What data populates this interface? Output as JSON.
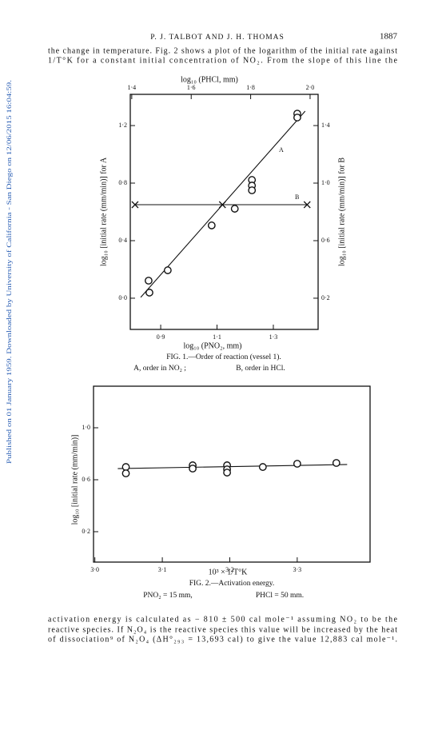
{
  "header": {
    "authors": "P. J. TALBOT AND J. H. THOMAS",
    "page": "1887"
  },
  "side_note": "Published on 01 January 1959. Downloaded by University of California - San Diego on 12/06/2015 16:04:59.",
  "paragraph_top": [
    "the change in temperature.  Fig. 2 shows a plot of the logarithm of the initial rate against",
    "1/T°K for a constant initial concentration of NO₂.  From the slope of this line the"
  ],
  "figures": [
    {
      "type": "scatter",
      "x_label": "log₁₀ (PNO₂, mm)",
      "x2_label": "log₁₀ (PHCl, mm)",
      "y_label": "log₁₀ [initial rate (mm/min)] for A",
      "y2_label": "log₁₀ [initial rate (mm/min)] for B",
      "xlim": [
        0.792,
        1.459
      ],
      "xticks": [
        {
          "value": 0.9,
          "label": "0·9"
        },
        {
          "value": 1.1,
          "label": "1·1"
        },
        {
          "value": 1.3,
          "label": "1·3"
        }
      ],
      "x2lim": [
        1.395,
        2.027
      ],
      "x2ticks": [
        {
          "value": 1.4,
          "label": "1·4"
        },
        {
          "value": 1.6,
          "label": "1·6"
        },
        {
          "value": 1.8,
          "label": "1·8"
        },
        {
          "value": 2.0,
          "label": "2·0"
        }
      ],
      "ylim": [
        -0.217,
        1.417
      ],
      "yticks": [
        {
          "value": 0.0,
          "label": "0·0"
        },
        {
          "value": 0.4,
          "label": "0·4"
        },
        {
          "value": 0.8,
          "label": "0·8"
        },
        {
          "value": 1.2,
          "label": "1·2"
        }
      ],
      "y2lim": [
        -0.017,
        1.617
      ],
      "y2ticks": [
        {
          "value": 0.2,
          "label": "0·2"
        },
        {
          "value": 0.6,
          "label": "0·6"
        },
        {
          "value": 1.0,
          "label": "1·0"
        },
        {
          "value": 1.4,
          "label": "1·4"
        }
      ],
      "series": [
        {
          "name": "A",
          "marker": "circle",
          "color": "#111111",
          "x": [
            0.857,
            0.86,
            0.925,
            1.081,
            1.163,
            1.224,
            1.224,
            1.224,
            1.385,
            1.385
          ],
          "values": [
            0.122,
            0.039,
            0.194,
            0.506,
            0.622,
            0.822,
            0.783,
            0.75,
            1.283,
            1.256
          ],
          "fit": {
            "x": [
              0.829,
              1.413
            ],
            "values": [
              0.006,
              1.3
            ]
          }
        },
        {
          "name": "B",
          "marker": "cross",
          "color": "#111111",
          "axis": "y2",
          "xaxis": "x2",
          "x": [
            1.411,
            1.705,
            1.99
          ],
          "values": [
            0.85,
            0.85,
            0.85
          ],
          "fit": {
            "x": [
              1.411,
              1.99
            ],
            "values": [
              0.85,
              0.85
            ]
          }
        }
      ],
      "caption": "FIG. 1.—Order of reaction (vessel 1).",
      "caption_notes": [
        "A, order in NO₂ ;",
        "B, order in HCl."
      ]
    },
    {
      "type": "scatter",
      "x_label": "10³ × 1/T°K",
      "y_label": "log₁₀ [initial rate (mm/min)]",
      "xlim": [
        2.998,
        3.408
      ],
      "xticks": [
        {
          "value": 3.0,
          "label": "3·0"
        },
        {
          "value": 3.1,
          "label": "3·1"
        },
        {
          "value": 3.2,
          "label": "3·2"
        },
        {
          "value": 3.3,
          "label": "3·3"
        }
      ],
      "ylim": [
        -0.034,
        1.32
      ],
      "yticks": [
        {
          "value": 0.2,
          "label": "0·2"
        },
        {
          "value": 0.6,
          "label": "0·6"
        },
        {
          "value": 1.0,
          "label": "1·0"
        }
      ],
      "series": [
        {
          "marker": "circle",
          "color": "#111111",
          "x": [
            3.046,
            3.046,
            3.145,
            3.145,
            3.196,
            3.196,
            3.196,
            3.249,
            3.3,
            3.358
          ],
          "values": [
            0.698,
            0.649,
            0.711,
            0.686,
            0.711,
            0.68,
            0.655,
            0.698,
            0.723,
            0.729
          ],
          "fit": {
            "x": [
              3.034,
              3.374
            ],
            "values": [
              0.686,
              0.717
            ]
          }
        }
      ],
      "caption": "FIG. 2.—Activation energy.",
      "caption_notes": [
        "PNO₂ = 15 mm,",
        "PHCl = 50 mm."
      ]
    }
  ],
  "paragraph_bottom": [
    "activation energy is calculated as − 810 ± 500 cal mole⁻¹ assuming NO₂ to be the",
    "reactive species.  If N₂O₄ is the reactive species this value will be increased by the heat",
    "of dissociation⁹ of N₂O₄ (ΔH°₂₉₃ = 13,693 cal) to give the value 12,883 cal mole⁻¹."
  ]
}
